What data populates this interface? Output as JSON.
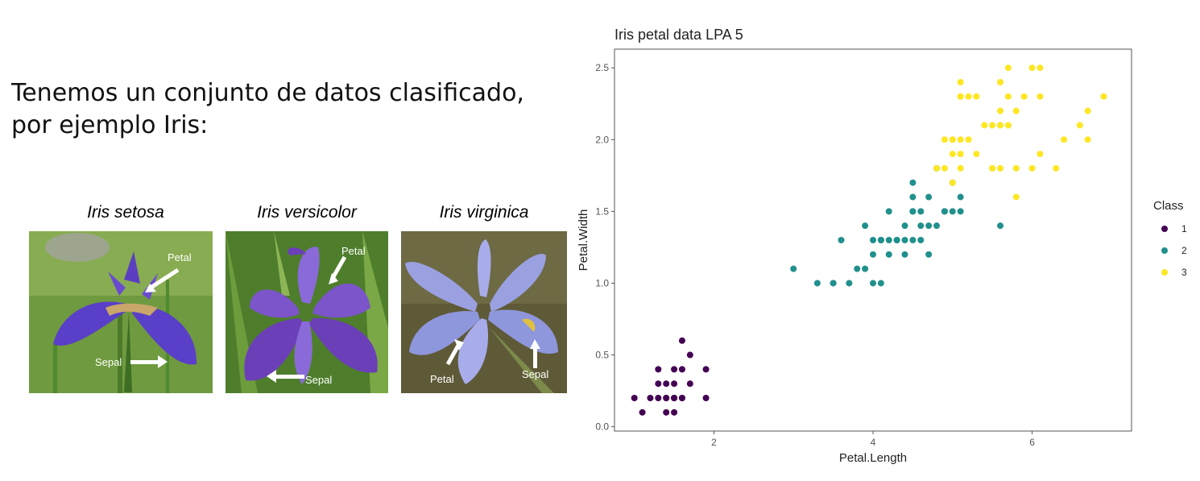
{
  "intro": {
    "line1": "Tenemos un conjunto de datos clasificado,",
    "line2": "por ejemplo Iris:"
  },
  "species": [
    {
      "name": "Iris setosa",
      "petal_label": "Petal",
      "sepal_label": "Sepal"
    },
    {
      "name": "Iris versicolor",
      "petal_label": "Petal",
      "sepal_label": "Sepal"
    },
    {
      "name": "Iris virginica",
      "petal_label": "Petal",
      "sepal_label": "Sepal"
    }
  ],
  "chart_data": {
    "type": "scatter",
    "title": "Iris petal data LPA 5",
    "xlabel": "Petal.Length",
    "ylabel": "Petal.Width",
    "xlim": [
      0.75,
      7.25
    ],
    "ylim": [
      -0.03,
      2.63
    ],
    "xticks": [
      2,
      4,
      6
    ],
    "yticks": [
      0.0,
      0.5,
      1.0,
      1.5,
      2.0,
      2.5
    ],
    "ytick_labels": [
      "0.0",
      "0.5",
      "1.0",
      "1.5",
      "2.0",
      "2.5"
    ],
    "grid": false,
    "legend": {
      "title": "Class",
      "position": "right"
    },
    "series": [
      {
        "name": "1",
        "color": "#440154",
        "x": [
          1.0,
          1.1,
          1.2,
          1.3,
          1.3,
          1.3,
          1.4,
          1.4,
          1.4,
          1.5,
          1.5,
          1.5,
          1.5,
          1.5,
          1.6,
          1.6,
          1.6,
          1.7,
          1.7,
          1.9,
          1.9,
          1.5,
          1.4,
          1.6
        ],
        "y": [
          0.2,
          0.1,
          0.2,
          0.2,
          0.3,
          0.4,
          0.2,
          0.3,
          0.1,
          0.2,
          0.4,
          0.3,
          0.1,
          0.2,
          0.2,
          0.4,
          0.6,
          0.5,
          0.3,
          0.2,
          0.4,
          0.2,
          0.2,
          0.2
        ]
      },
      {
        "name": "2",
        "color": "#21908C",
        "x": [
          3.0,
          3.3,
          3.5,
          3.6,
          3.7,
          3.8,
          3.9,
          3.9,
          4.0,
          4.0,
          4.0,
          4.1,
          4.1,
          4.1,
          4.2,
          4.2,
          4.2,
          4.3,
          4.3,
          4.4,
          4.4,
          4.4,
          4.5,
          4.5,
          4.5,
          4.5,
          4.5,
          4.6,
          4.6,
          4.6,
          4.7,
          4.7,
          4.7,
          4.8,
          4.8,
          4.9,
          4.9,
          5.0,
          5.0,
          5.1,
          5.1,
          5.6,
          3.5,
          4.1
        ],
        "y": [
          1.1,
          1.0,
          1.0,
          1.3,
          1.0,
          1.1,
          1.1,
          1.4,
          1.0,
          1.2,
          1.3,
          1.0,
          1.3,
          1.3,
          1.2,
          1.3,
          1.5,
          1.3,
          1.3,
          1.2,
          1.3,
          1.4,
          1.3,
          1.5,
          1.6,
          1.7,
          1.5,
          1.3,
          1.4,
          1.5,
          1.2,
          1.4,
          1.6,
          1.4,
          1.8,
          1.5,
          1.5,
          1.5,
          1.7,
          1.5,
          1.6,
          1.4,
          1.0,
          1.3
        ]
      },
      {
        "name": "3",
        "color": "#FDE725",
        "x": [
          4.8,
          4.9,
          5.0,
          5.0,
          5.0,
          5.1,
          5.1,
          5.1,
          5.1,
          5.1,
          5.1,
          5.2,
          5.2,
          5.3,
          5.3,
          5.4,
          5.5,
          5.5,
          5.5,
          5.6,
          5.6,
          5.6,
          5.6,
          5.7,
          5.7,
          5.8,
          5.8,
          5.8,
          5.9,
          6.0,
          6.0,
          6.1,
          6.1,
          6.1,
          6.3,
          6.4,
          6.6,
          6.7,
          6.7,
          6.9,
          5.6,
          5.7,
          4.9,
          5.0
        ],
        "y": [
          1.8,
          1.8,
          2.0,
          1.9,
          1.7,
          1.8,
          1.9,
          2.0,
          2.3,
          2.4,
          2.3,
          2.0,
          2.3,
          1.9,
          2.3,
          2.1,
          1.8,
          2.1,
          1.8,
          2.1,
          2.2,
          2.4,
          1.8,
          2.3,
          2.5,
          2.2,
          1.8,
          1.6,
          2.3,
          2.5,
          1.8,
          1.9,
          2.3,
          2.5,
          1.8,
          2.0,
          2.1,
          2.0,
          2.2,
          2.3,
          2.1,
          2.1,
          2.0,
          2.0
        ]
      }
    ]
  }
}
